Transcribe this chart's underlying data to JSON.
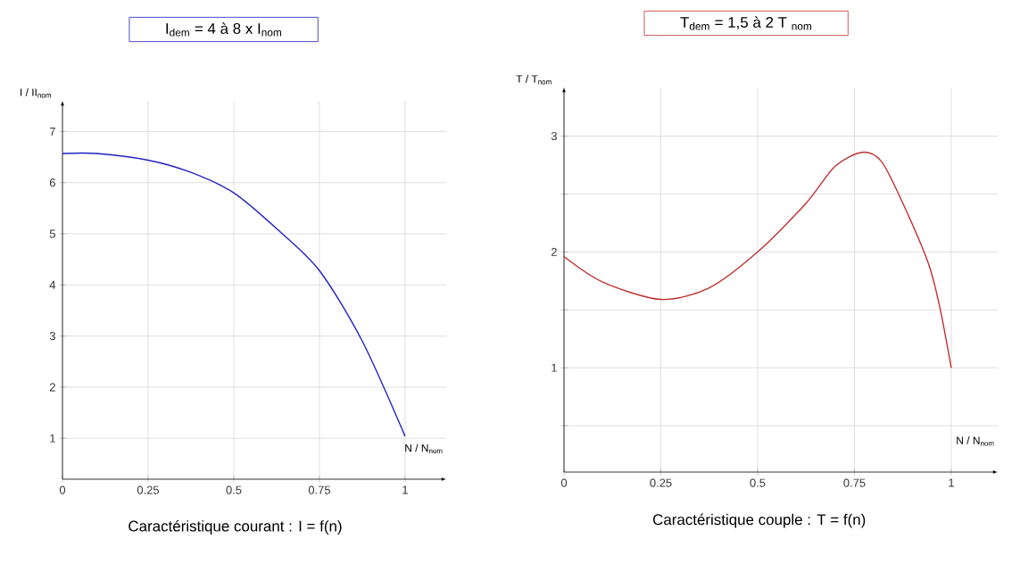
{
  "chart_data": [
    {
      "type": "line",
      "title": "I$_{dem}$ = 4 à 8 x I$_{nom}$",
      "ylabel": "I / II$_{nom}$",
      "xlabel": "N / N$_{nom}$",
      "annotations": [
        "Caractéristique courant  : I = f(n)"
      ],
      "grid": true,
      "xlim": [
        0,
        1.12
      ],
      "ylim": [
        0.2,
        7.6
      ],
      "xticks": [
        0,
        0.25,
        0.5,
        0.75,
        1
      ],
      "yticks": [
        1,
        2,
        3,
        4,
        5,
        6,
        7
      ],
      "series": [
        {
          "color": "#2020c0",
          "x": [
            0,
            0.1,
            0.25,
            0.375,
            0.5,
            0.625,
            0.75,
            0.875,
            1
          ],
          "values": [
            6.57,
            6.57,
            6.44,
            6.2,
            5.8,
            5.1,
            4.28,
            2.9,
            1.04
          ]
        }
      ]
    },
    {
      "type": "line",
      "title": "T$_{dem}$ = 1,5  à 2  T $_{nom}$",
      "ylabel": "T / T$_{nom}$",
      "xlabel": "N / N$_{nom}$",
      "annotations": [
        "Caractéristique couple  : T = f(n)"
      ],
      "grid": true,
      "xlim": [
        0,
        1.12
      ],
      "ylim": [
        0.1,
        3.42
      ],
      "xticks": [
        0,
        0.25,
        0.5,
        0.75,
        1
      ],
      "yticks": [
        {
          "value": 0.5,
          "label": null
        },
        1,
        {
          "value": 1.5,
          "label": null
        },
        2,
        {
          "value": 2.5,
          "label": null
        },
        3
      ],
      "series": [
        {
          "color": "#c03030",
          "x": [
            0,
            0.1,
            0.25,
            0.375,
            0.5,
            0.625,
            0.7,
            0.77,
            0.82,
            0.875,
            0.94,
            0.97,
            1
          ],
          "values": [
            1.96,
            1.74,
            1.59,
            1.69,
            2.0,
            2.42,
            2.74,
            2.86,
            2.78,
            2.42,
            1.91,
            1.53,
            1.0
          ]
        }
      ]
    }
  ]
}
